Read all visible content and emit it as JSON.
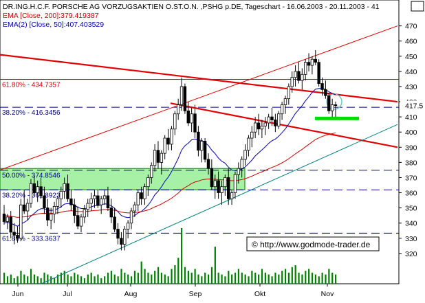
{
  "header": {
    "title": "DR.ING.H.C.F. PORSCHE AG VORZUGSAKTIEN O.ST.O.N. ,PSHG p.DE, Tageschart - 16.06.2003 - 20.11.2003 - 41",
    "ema200": "EMA [Close, 200]:379.419387",
    "ema50": "EMA(2) [Close, 50]:407.403529"
  },
  "watermark": "© http://www.godmode-trader.de",
  "colors": {
    "background": "#ffffff",
    "candle_up": "#ffffff",
    "candle_down": "#000000",
    "ema200": "#cc0000",
    "ema50": "#0000aa",
    "trendline_red": "#e00000",
    "channel_red": "#e00000",
    "trendline_teal": "#008080",
    "fib_zone": "#90ee90",
    "volume": "#008000",
    "highlight_bar": "#00dd00",
    "circle": "#66cccc"
  },
  "chart_data": {
    "type": "candlestick",
    "title": "DR.ING.H.C.F. PORSCHE AG VORZUGSAKTIEN O.ST.O.N. ,PSHG p.DE, Tageschart - 16.06.2003 - 20.11.2003 - 41",
    "x_labels": [
      "Jun",
      "Jul",
      "Aug",
      "Sep",
      "Okt",
      "Nov"
    ],
    "y_ticks": [
      320,
      330,
      340,
      350,
      360,
      370,
      380,
      390,
      400,
      410,
      420,
      430,
      440,
      450,
      460,
      470
    ],
    "ylim": [
      300,
      478
    ],
    "last_price_label": "417.5",
    "last_price": 417.5,
    "fib_levels": [
      {
        "label": "61.80% - 434.7357",
        "value": 434.7357,
        "style": "solid"
      },
      {
        "label": "38.20% - 416.3456",
        "value": 416.3456,
        "style": "dashed"
      },
      {
        "label": "50.00% - 374.8546",
        "value": 374.8546,
        "style": "dashed"
      },
      {
        "label": "38.20% - 361.8923",
        "value": 361.8923,
        "style": "dashed"
      },
      {
        "label": "61.80% - 333.3637",
        "value": 333.3637,
        "style": "dashed"
      }
    ],
    "fib_zone": {
      "low": 362,
      "high": 376
    },
    "highlight_bar_value": 409,
    "series": [
      {
        "name": "EMA [Close, 200]",
        "last": 379.419387
      },
      {
        "name": "EMA(2) [Close, 50]",
        "last": 407.403529
      }
    ],
    "candles": [
      [
        346,
        352,
        339,
        341
      ],
      [
        341,
        346,
        336,
        344
      ],
      [
        344,
        348,
        330,
        334
      ],
      [
        334,
        340,
        326,
        332
      ],
      [
        332,
        338,
        327,
        330
      ],
      [
        330,
        356,
        328,
        352
      ],
      [
        352,
        362,
        346,
        348
      ],
      [
        348,
        356,
        342,
        353
      ],
      [
        353,
        369,
        350,
        366
      ],
      [
        366,
        371,
        358,
        360
      ],
      [
        360,
        368,
        354,
        364
      ],
      [
        364,
        370,
        356,
        358
      ],
      [
        358,
        364,
        346,
        350
      ],
      [
        350,
        356,
        338,
        342
      ],
      [
        342,
        350,
        336,
        346
      ],
      [
        346,
        354,
        340,
        351
      ],
      [
        351,
        358,
        346,
        356
      ],
      [
        356,
        364,
        350,
        361
      ],
      [
        361,
        370,
        356,
        366
      ],
      [
        366,
        372,
        354,
        356
      ],
      [
        356,
        362,
        348,
        352
      ],
      [
        352,
        356,
        340,
        345
      ],
      [
        345,
        351,
        336,
        338
      ],
      [
        338,
        346,
        334,
        344
      ],
      [
        344,
        352,
        340,
        349
      ],
      [
        349,
        356,
        344,
        353
      ],
      [
        353,
        360,
        348,
        356
      ],
      [
        356,
        362,
        350,
        358
      ],
      [
        358,
        362,
        350,
        352
      ],
      [
        352,
        358,
        346,
        356
      ],
      [
        356,
        362,
        352,
        358
      ],
      [
        358,
        364,
        348,
        350
      ],
      [
        350,
        356,
        340,
        344
      ],
      [
        344,
        350,
        334,
        336
      ],
      [
        336,
        340,
        326,
        330
      ],
      [
        330,
        334,
        322,
        326
      ],
      [
        326,
        338,
        322,
        336
      ],
      [
        336,
        342,
        330,
        340
      ],
      [
        340,
        350,
        336,
        348
      ],
      [
        348,
        354,
        344,
        352
      ],
      [
        352,
        362,
        348,
        360
      ],
      [
        360,
        364,
        352,
        356
      ],
      [
        356,
        366,
        352,
        364
      ],
      [
        364,
        372,
        358,
        370
      ],
      [
        370,
        380,
        366,
        378
      ],
      [
        378,
        392,
        374,
        388
      ],
      [
        388,
        394,
        376,
        380
      ],
      [
        380,
        388,
        372,
        386
      ],
      [
        386,
        398,
        382,
        396
      ],
      [
        396,
        402,
        388,
        392
      ],
      [
        392,
        404,
        388,
        402
      ],
      [
        402,
        414,
        398,
        412
      ],
      [
        412,
        422,
        408,
        418
      ],
      [
        418,
        436,
        414,
        430
      ],
      [
        430,
        432,
        412,
        414
      ],
      [
        414,
        420,
        404,
        406
      ],
      [
        406,
        416,
        400,
        412
      ],
      [
        412,
        418,
        396,
        400
      ],
      [
        400,
        404,
        384,
        388
      ],
      [
        388,
        396,
        380,
        394
      ],
      [
        394,
        396,
        380,
        382
      ],
      [
        382,
        386,
        372,
        376
      ],
      [
        376,
        382,
        362,
        364
      ],
      [
        364,
        372,
        356,
        368
      ],
      [
        368,
        374,
        356,
        360
      ],
      [
        360,
        368,
        352,
        364
      ],
      [
        364,
        372,
        358,
        370
      ],
      [
        370,
        376,
        352,
        356
      ],
      [
        356,
        362,
        352,
        360
      ],
      [
        360,
        374,
        356,
        372
      ],
      [
        372,
        380,
        366,
        376
      ],
      [
        376,
        384,
        370,
        382
      ],
      [
        382,
        392,
        378,
        388
      ],
      [
        388,
        398,
        384,
        396
      ],
      [
        396,
        404,
        390,
        400
      ],
      [
        400,
        410,
        396,
        406
      ],
      [
        406,
        412,
        398,
        402
      ],
      [
        402,
        408,
        396,
        404
      ],
      [
        404,
        410,
        398,
        406
      ],
      [
        406,
        412,
        402,
        410
      ],
      [
        410,
        416,
        404,
        408
      ],
      [
        408,
        412,
        400,
        404
      ],
      [
        404,
        414,
        402,
        412
      ],
      [
        412,
        420,
        408,
        418
      ],
      [
        418,
        424,
        412,
        422
      ],
      [
        422,
        432,
        418,
        430
      ],
      [
        430,
        440,
        426,
        436
      ],
      [
        436,
        444,
        430,
        440
      ],
      [
        440,
        446,
        432,
        434
      ],
      [
        434,
        442,
        428,
        438
      ],
      [
        438,
        448,
        434,
        446
      ],
      [
        446,
        452,
        440,
        444
      ],
      [
        444,
        450,
        438,
        448
      ],
      [
        448,
        454,
        444,
        446
      ],
      [
        446,
        448,
        430,
        432
      ],
      [
        432,
        436,
        424,
        428
      ],
      [
        428,
        434,
        422,
        424
      ],
      [
        424,
        426,
        412,
        414
      ],
      [
        414,
        422,
        410,
        418
      ],
      [
        418,
        420,
        410,
        417.5
      ]
    ],
    "volumes": [
      6,
      4,
      5,
      3,
      4,
      7,
      5,
      4,
      8,
      5,
      4,
      3,
      6,
      5,
      4,
      3,
      5,
      6,
      7,
      5,
      4,
      6,
      5,
      4,
      3,
      5,
      6,
      4,
      5,
      3,
      4,
      6,
      7,
      5,
      4,
      8,
      6,
      5,
      4,
      7,
      6,
      12,
      8,
      6,
      5,
      7,
      9,
      6,
      5,
      4,
      8,
      10,
      14,
      30,
      9,
      7,
      6,
      8,
      5,
      4,
      6,
      5,
      9,
      20,
      6,
      5,
      4,
      7,
      5,
      6,
      8,
      6,
      5,
      4,
      7,
      6,
      5,
      8,
      6,
      5,
      4,
      6,
      5,
      7,
      8,
      6,
      9,
      10,
      6,
      5,
      7,
      8,
      6,
      5,
      4,
      6,
      5,
      8,
      6,
      5
    ]
  }
}
